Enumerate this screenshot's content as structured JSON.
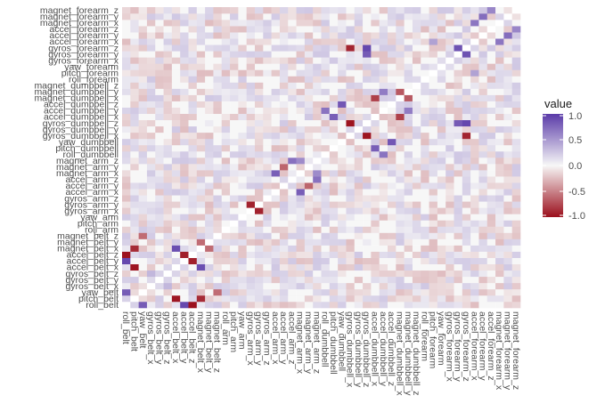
{
  "chart_data": {
    "type": "heatmap",
    "variables": [
      "roll_belt",
      "pitch_belt",
      "yaw_belt",
      "gyros_belt_x",
      "gyros_belt_y",
      "gyros_belt_z",
      "accel_belt_x",
      "accel_belt_y",
      "accel_belt_z",
      "magnet_belt_x",
      "magnet_belt_y",
      "magnet_belt_z",
      "roll_arm",
      "pitch_arm",
      "yaw_arm",
      "gyros_arm_x",
      "gyros_arm_y",
      "gyros_arm_z",
      "accel_arm_x",
      "accel_arm_y",
      "accel_arm_z",
      "magnet_arm_x",
      "magnet_arm_y",
      "magnet_arm_z",
      "roll_dumbbell",
      "pitch_dumbbell",
      "yaw_dumbbell",
      "gyros_dumbbell_x",
      "gyros_dumbbell_y",
      "gyros_dumbbell_z",
      "accel_dumbbell_x",
      "accel_dumbbell_y",
      "accel_dumbbell_z",
      "magnet_dumbbell_x",
      "magnet_dumbbell_y",
      "magnet_dumbbell_z",
      "roll_forearm",
      "pitch_forearm",
      "yaw_forearm",
      "gyros_forearm_x",
      "gyros_forearm_y",
      "gyros_forearm_z",
      "accel_forearm_x",
      "accel_forearm_y",
      "accel_forearm_z",
      "magnet_forearm_x",
      "magnet_forearm_y",
      "magnet_forearm_z"
    ],
    "strong_pairs": [
      {
        "a": "roll_belt",
        "b": "accel_belt_z",
        "value": -0.99
      },
      {
        "a": "pitch_belt",
        "b": "accel_belt_x",
        "value": -0.97
      },
      {
        "a": "pitch_belt",
        "b": "magnet_belt_x",
        "value": -0.88
      },
      {
        "a": "roll_belt",
        "b": "yaw_belt",
        "value": 0.82
      },
      {
        "a": "roll_belt",
        "b": "accel_belt_y",
        "value": 0.92
      },
      {
        "a": "accel_belt_y",
        "b": "accel_belt_z",
        "value": -0.93
      },
      {
        "a": "accel_belt_x",
        "b": "magnet_belt_x",
        "value": 0.89
      },
      {
        "a": "gyros_belt_x",
        "b": "gyros_belt_z",
        "value": 0.34
      },
      {
        "a": "gyros_arm_x",
        "b": "gyros_arm_y",
        "value": -0.92
      },
      {
        "a": "accel_arm_x",
        "b": "magnet_arm_x",
        "value": 0.81
      },
      {
        "a": "accel_arm_y",
        "b": "magnet_arm_y",
        "value": -0.63
      },
      {
        "a": "magnet_arm_x",
        "b": "magnet_arm_z",
        "value": 0.57
      },
      {
        "a": "accel_arm_z",
        "b": "magnet_arm_z",
        "value": 0.71
      },
      {
        "a": "gyros_dumbbell_x",
        "b": "gyros_dumbbell_z",
        "value": -0.98
      },
      {
        "a": "gyros_dumbbell_x",
        "b": "gyros_forearm_z",
        "value": -0.91
      },
      {
        "a": "gyros_dumbbell_z",
        "b": "gyros_forearm_z",
        "value": 0.93
      },
      {
        "a": "gyros_dumbbell_z",
        "b": "gyros_forearm_y",
        "value": 0.83
      },
      {
        "a": "gyros_forearm_y",
        "b": "gyros_forearm_z",
        "value": 0.87
      },
      {
        "a": "pitch_dumbbell",
        "b": "accel_dumbbell_x",
        "value": 0.81
      },
      {
        "a": "yaw_dumbbell",
        "b": "accel_dumbbell_z",
        "value": 0.85
      },
      {
        "a": "roll_dumbbell",
        "b": "accel_dumbbell_y",
        "value": 0.7
      },
      {
        "a": "accel_dumbbell_x",
        "b": "magnet_dumbbell_x",
        "value": -0.79
      },
      {
        "a": "accel_dumbbell_y",
        "b": "magnet_dumbbell_y",
        "value": 0.65
      },
      {
        "a": "magnet_dumbbell_x",
        "b": "magnet_dumbbell_y",
        "value": -0.68
      },
      {
        "a": "magnet_belt_x",
        "b": "magnet_belt_y",
        "value": -0.6
      },
      {
        "a": "yaw_belt",
        "b": "magnet_belt_z",
        "value": -0.6
      },
      {
        "a": "accel_forearm_x",
        "b": "magnet_forearm_x",
        "value": 0.68
      },
      {
        "a": "accel_forearm_y",
        "b": "magnet_forearm_y",
        "value": 0.73
      },
      {
        "a": "accel_forearm_z",
        "b": "magnet_forearm_z",
        "value": 0.6
      },
      {
        "a": "pitch_forearm",
        "b": "accel_forearm_x",
        "value": 0.45
      }
    ],
    "background_note": "",
    "legend": {
      "title": "value",
      "ticks": [
        "1.0",
        "0.5",
        "0.0",
        "-0.5",
        "-1.0"
      ],
      "tick_values": [
        1.0,
        0.5,
        0.0,
        -0.5,
        -1.0
      ],
      "range": [
        -1,
        1
      ],
      "colors": {
        "low": "#9b0f1c",
        "mid": "#f7f7f7",
        "high": "#5a3aa8"
      }
    },
    "grid": true,
    "legend_position": "right"
  }
}
